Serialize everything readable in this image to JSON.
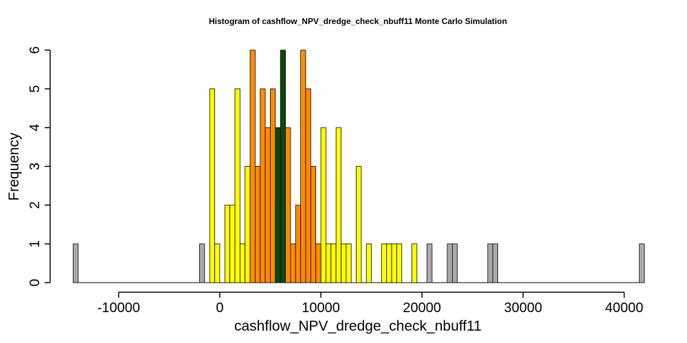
{
  "chart_data": {
    "type": "histogram",
    "title": "Histogram of  cashflow_NPV_dredge_check_nbuff11  Monte Carlo Simulation",
    "xlabel": "cashflow_NPV_dredge_check_nbuff11",
    "ylabel": "Frequency",
    "xlim": [
      -14500,
      42000
    ],
    "ylim": [
      0,
      6
    ],
    "bin_width": 500,
    "x_ticks": [
      -10000,
      0,
      10000,
      20000,
      30000,
      40000
    ],
    "x_tick_labels": [
      "-10000",
      "0",
      "10000",
      "20000",
      "30000",
      "40000"
    ],
    "y_ticks": [
      0,
      1,
      2,
      3,
      4,
      5,
      6
    ],
    "y_tick_labels": [
      "0",
      "1",
      "2",
      "3",
      "4",
      "5",
      "6"
    ],
    "colors": {
      "gray": "#aaaaaa",
      "yellow": "#ffff00",
      "orange": "#ff8c00",
      "green": "#0c4a0c"
    },
    "bins": [
      {
        "x0": -14500,
        "count": 1,
        "color": "gray"
      },
      {
        "x0": -2000,
        "count": 1,
        "color": "gray"
      },
      {
        "x0": -1000,
        "count": 5,
        "color": "yellow"
      },
      {
        "x0": -500,
        "count": 1,
        "color": "yellow"
      },
      {
        "x0": 500,
        "count": 2,
        "color": "yellow"
      },
      {
        "x0": 1000,
        "count": 2,
        "color": "yellow"
      },
      {
        "x0": 1500,
        "count": 5,
        "color": "yellow"
      },
      {
        "x0": 2000,
        "count": 1,
        "color": "yellow"
      },
      {
        "x0": 2500,
        "count": 3,
        "color": "yellow"
      },
      {
        "x0": 3000,
        "count": 6,
        "color": "orange"
      },
      {
        "x0": 3500,
        "count": 3,
        "color": "orange"
      },
      {
        "x0": 4000,
        "count": 5,
        "color": "orange"
      },
      {
        "x0": 4500,
        "count": 4,
        "color": "orange"
      },
      {
        "x0": 5000,
        "count": 5,
        "color": "orange"
      },
      {
        "x0": 5500,
        "count": 2,
        "color": "orange"
      },
      {
        "x0": 5500,
        "count": 4,
        "color": "green"
      },
      {
        "x0": 6000,
        "count": 6,
        "color": "green"
      },
      {
        "x0": 6500,
        "count": 4,
        "color": "orange"
      },
      {
        "x0": 7000,
        "count": 1,
        "color": "orange"
      },
      {
        "x0": 7500,
        "count": 2,
        "color": "orange"
      },
      {
        "x0": 8000,
        "count": 6,
        "color": "orange"
      },
      {
        "x0": 8500,
        "count": 5,
        "color": "orange"
      },
      {
        "x0": 9000,
        "count": 3,
        "color": "orange"
      },
      {
        "x0": 9500,
        "count": 1,
        "color": "orange"
      },
      {
        "x0": 10000,
        "count": 4,
        "color": "yellow"
      },
      {
        "x0": 10500,
        "count": 1,
        "color": "yellow"
      },
      {
        "x0": 11000,
        "count": 1,
        "color": "yellow"
      },
      {
        "x0": 11500,
        "count": 4,
        "color": "yellow"
      },
      {
        "x0": 12000,
        "count": 1,
        "color": "yellow"
      },
      {
        "x0": 12500,
        "count": 1,
        "color": "yellow"
      },
      {
        "x0": 13500,
        "count": 3,
        "color": "yellow"
      },
      {
        "x0": 14500,
        "count": 1,
        "color": "yellow"
      },
      {
        "x0": 16000,
        "count": 1,
        "color": "yellow"
      },
      {
        "x0": 16500,
        "count": 1,
        "color": "yellow"
      },
      {
        "x0": 17000,
        "count": 1,
        "color": "yellow"
      },
      {
        "x0": 17500,
        "count": 1,
        "color": "yellow"
      },
      {
        "x0": 19000,
        "count": 1,
        "color": "yellow"
      },
      {
        "x0": 20500,
        "count": 1,
        "color": "gray"
      },
      {
        "x0": 22500,
        "count": 1,
        "color": "gray"
      },
      {
        "x0": 23000,
        "count": 1,
        "color": "gray"
      },
      {
        "x0": 26500,
        "count": 1,
        "color": "gray"
      },
      {
        "x0": 27000,
        "count": 1,
        "color": "gray"
      },
      {
        "x0": 41500,
        "count": 1,
        "color": "gray"
      }
    ]
  }
}
